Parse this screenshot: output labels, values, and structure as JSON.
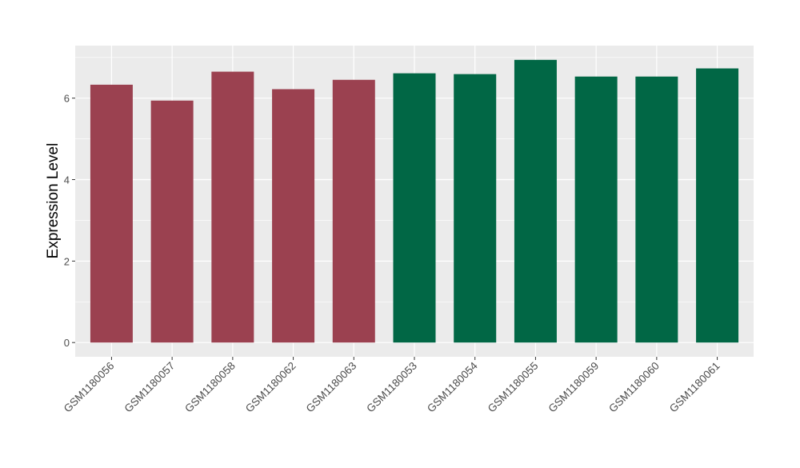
{
  "chart_data": {
    "type": "bar",
    "title": "",
    "xlabel": "",
    "ylabel": "Expression Level",
    "ylim": [
      -0.35,
      7.29
    ],
    "yticks": [
      0,
      2,
      4,
      6
    ],
    "grid": true,
    "legend": "none",
    "categories": [
      "GSM1180056",
      "GSM1180057",
      "GSM1180058",
      "GSM1180062",
      "GSM1180063",
      "GSM1180053",
      "GSM1180054",
      "GSM1180055",
      "GSM1180059",
      "GSM1180060",
      "GSM1180061"
    ],
    "values": [
      6.33,
      5.94,
      6.65,
      6.22,
      6.45,
      6.61,
      6.59,
      6.94,
      6.53,
      6.53,
      6.73
    ],
    "bar_colors": [
      "#9b4150",
      "#9b4150",
      "#9b4150",
      "#9b4150",
      "#9b4150",
      "#016745",
      "#016745",
      "#016745",
      "#016745",
      "#016745",
      "#016745"
    ],
    "panel_background": "#ebebeb",
    "grid_color": "#ffffff"
  }
}
